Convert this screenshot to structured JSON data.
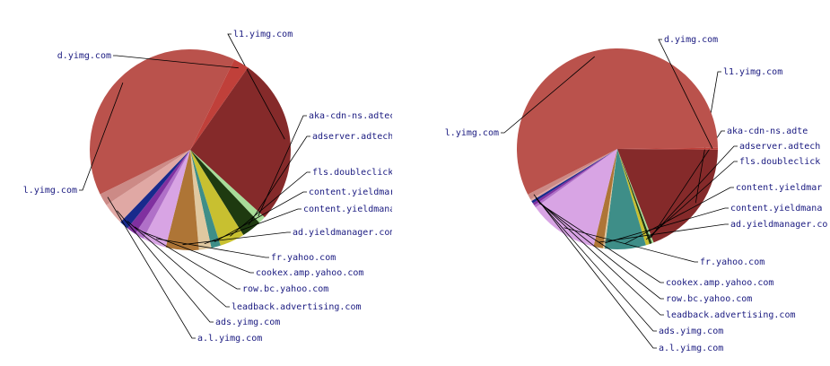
{
  "chart_data": [
    {
      "type": "pie",
      "title": "",
      "slices": [
        {
          "label": "l1.yimg.com",
          "value": 27.0,
          "color": "#852a2a"
        },
        {
          "label": "aka-cdn-ns.adtec",
          "value": 1.2,
          "color": "#a8dc98"
        },
        {
          "label": "adserver.adtech",
          "value": 3.2,
          "color": "#1e3a10"
        },
        {
          "label": "fls.doubleclick",
          "value": 4.0,
          "color": "#c8c030"
        },
        {
          "label": "content.yieldmar",
          "value": 1.5,
          "color": "#3e8e88"
        },
        {
          "label": "content.yieldmana",
          "value": 2.0,
          "color": "#e0c8a0"
        },
        {
          "label": "ad.yieldmanager.com",
          "value": 5.3,
          "color": "#ae7536"
        },
        {
          "label": "fr.yahoo.com",
          "value": 3.8,
          "color": "#d8a4e4"
        },
        {
          "label": "cookex.amp.yahoo.com",
          "value": 1.5,
          "color": "#b070c8"
        },
        {
          "label": "row.bc.yahoo.com",
          "value": 1.5,
          "color": "#8030a0"
        },
        {
          "label": "leadback.advertising.com",
          "value": 1.5,
          "color": "#182a8c"
        },
        {
          "label": "ads.yimg.com",
          "value": 3.5,
          "color": "#e0a8a4"
        },
        {
          "label": "a.l.yimg.com",
          "value": 2.0,
          "color": "#cc8a86"
        },
        {
          "label": "l.yimg.com",
          "value": 39.5,
          "color": "#ba524c"
        },
        {
          "label": "d.yimg.com",
          "value": 2.5,
          "color": "#c0403a"
        }
      ]
    },
    {
      "type": "pie",
      "title": "",
      "slices": [
        {
          "label": "l1.yimg.com",
          "value": 19.0,
          "color": "#852a2a"
        },
        {
          "label": "aka-cdn-ns.adte",
          "value": 0.3,
          "color": "#a8dc98"
        },
        {
          "label": "adserver.adtech",
          "value": 0.4,
          "color": "#1e3a10"
        },
        {
          "label": "fls.doubleclick",
          "value": 0.6,
          "color": "#c8c030"
        },
        {
          "label": "content.yieldmar",
          "value": 6.6,
          "color": "#3e8e88"
        },
        {
          "label": "content.yieldmana",
          "value": 0.3,
          "color": "#e0c8a0"
        },
        {
          "label": "ad.yieldmanager.co",
          "value": 1.5,
          "color": "#ae7536"
        },
        {
          "label": "fr.yahoo.com",
          "value": 11.3,
          "color": "#d8a4e4"
        },
        {
          "label": "cookex.amp.yahoo.com",
          "value": 0.4,
          "color": "#b070c8"
        },
        {
          "label": "row.bc.yahoo.com",
          "value": 0.4,
          "color": "#8030a0"
        },
        {
          "label": "leadback.advertising.com",
          "value": 0.4,
          "color": "#182a8c"
        },
        {
          "label": "ads.yimg.com",
          "value": 0.3,
          "color": "#e0a8a4"
        },
        {
          "label": "a.l.yimg.com",
          "value": 0.9,
          "color": "#cc8a86"
        },
        {
          "label": "l.yimg.com",
          "value": 57.3,
          "color": "#ba524c"
        },
        {
          "label": "d.yimg.com",
          "value": 0.3,
          "color": "#c0403a"
        }
      ]
    }
  ]
}
